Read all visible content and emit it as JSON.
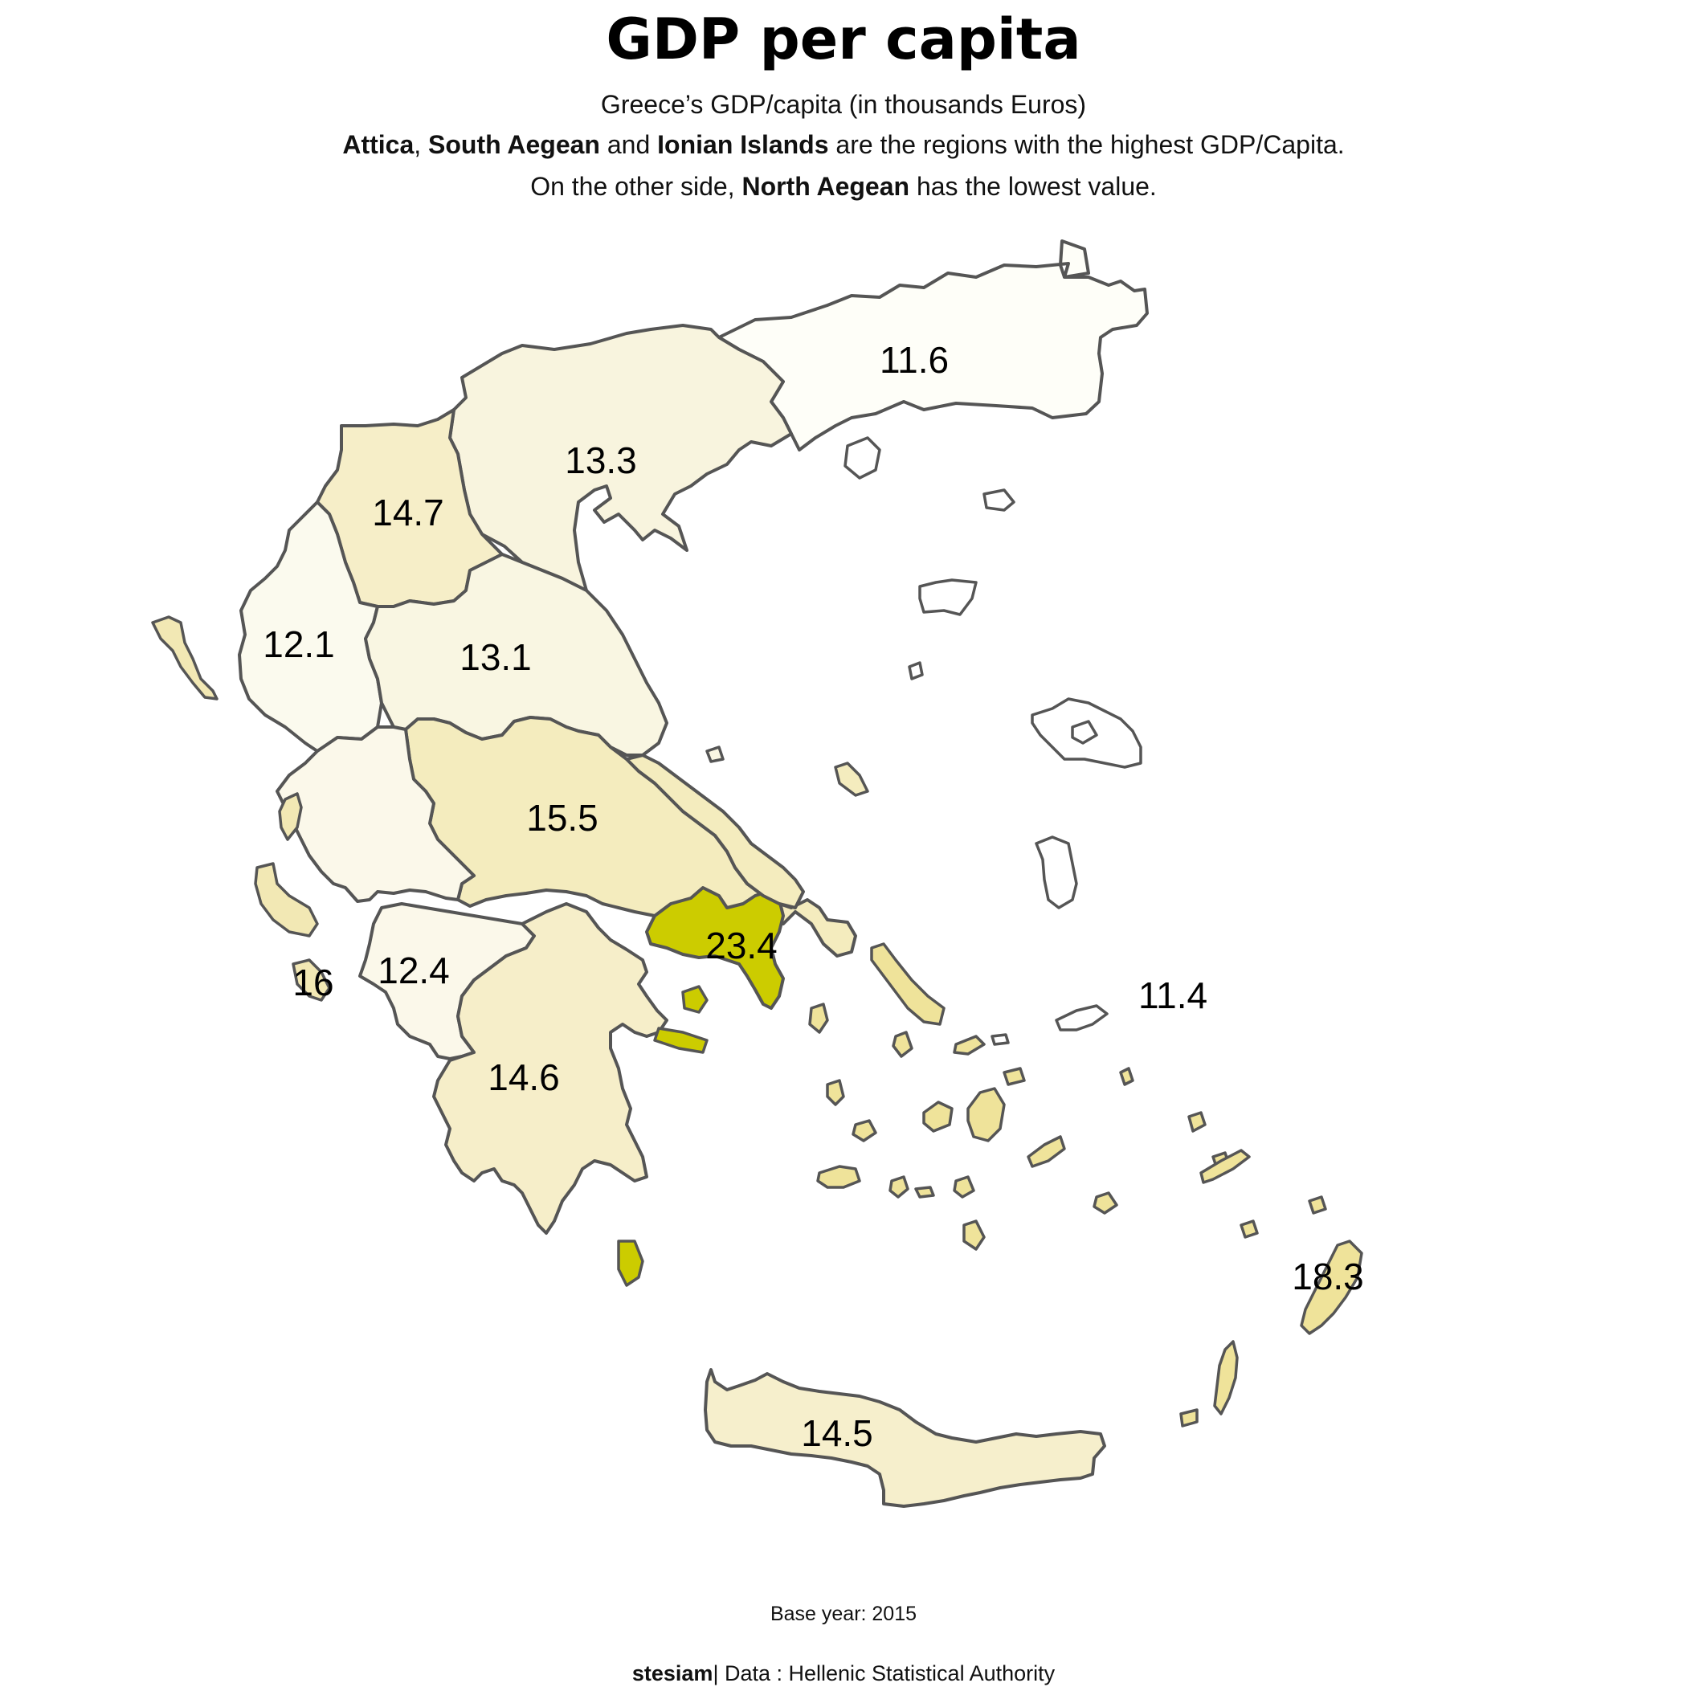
{
  "header": {
    "title": "GDP per capita",
    "subtitle": "Greece’s GDP/capita (in thousands Euros)",
    "line2": {
      "b1": "Attica",
      "sep1": ", ",
      "b2": "South Aegean",
      "mid": " and ",
      "b3": "Ionian Islands",
      "rest": " are the regions with the highest GDP/Capita."
    },
    "line3": {
      "pre": "On the other side, ",
      "b1": "North Aegean",
      "rest": " has the lowest value."
    }
  },
  "footer": {
    "base_year": "Base year: 2015",
    "author": "stesiam",
    "source": "| Data : Hellenic Statistical Authority"
  },
  "colors": {
    "border": "#555555",
    "scale_low": "#fffff8",
    "scale_high": "#cccc00"
  },
  "regions": [
    {
      "name": "Eastern Macedonia and Thrace",
      "value": "11.6",
      "color": "#fefef8"
    },
    {
      "name": "Central Macedonia",
      "value": "13.3",
      "color": "#f8f4de"
    },
    {
      "name": "Western Macedonia",
      "value": "14.7",
      "color": "#f6eec8"
    },
    {
      "name": "Epirus",
      "value": "12.1",
      "color": "#fbfaee"
    },
    {
      "name": "Thessaly",
      "value": "13.1",
      "color": "#f9f6e2"
    },
    {
      "name": "Central Greece",
      "value": "15.5",
      "color": "#f4ecbe"
    },
    {
      "name": "Western Greece",
      "value": "12.4",
      "color": "#fbf8ea"
    },
    {
      "name": "Peloponnese",
      "value": "14.6",
      "color": "#f6eec9"
    },
    {
      "name": "Attica",
      "value": "23.4",
      "color": "#cccc00"
    },
    {
      "name": "Ionian Islands",
      "value": "16",
      "color": "#f2e8b4"
    },
    {
      "name": "North Aegean",
      "value": "11.4",
      "color": "#ffffff"
    },
    {
      "name": "South Aegean",
      "value": "18.3",
      "color": "#efe39a"
    },
    {
      "name": "Crete",
      "value": "14.5",
      "color": "#f6efcc"
    }
  ]
}
